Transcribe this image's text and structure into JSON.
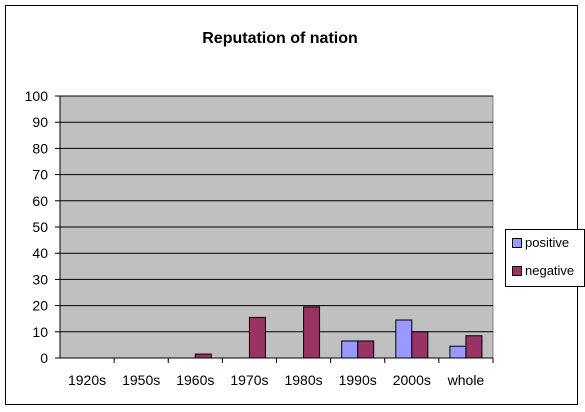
{
  "chart_data": {
    "type": "bar",
    "title": "Reputation of nation",
    "categories": [
      "1920s",
      "1950s",
      "1960s",
      "1970s",
      "1980s",
      "1990s",
      "2000s",
      "whole"
    ],
    "series": [
      {
        "name": "positive",
        "color": "#9999FF",
        "values": [
          0,
          0,
          0,
          0,
          0,
          6.5,
          14.5,
          4.5
        ]
      },
      {
        "name": "negative",
        "color": "#993366",
        "values": [
          0,
          0,
          1.5,
          15.5,
          19.5,
          6.5,
          10,
          8.5
        ]
      }
    ],
    "ylim": [
      0,
      100
    ],
    "yticks": [
      0,
      10,
      20,
      30,
      40,
      50,
      60,
      70,
      80,
      90,
      100
    ],
    "grid": true,
    "plot_background": "#C0C0C0",
    "legend_position": "right"
  }
}
